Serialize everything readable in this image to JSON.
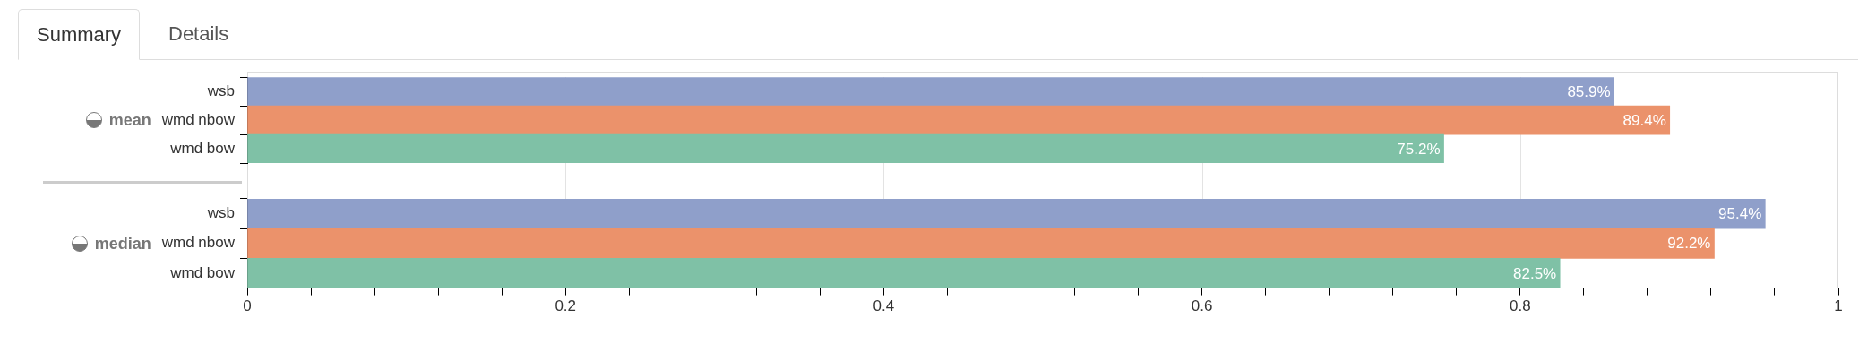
{
  "chart_data": [
    {
      "type": "bar",
      "orientation": "horizontal",
      "ylabel": "mean",
      "annotations": [
        "Summary",
        "Details"
      ],
      "categories": [
        "wsb",
        "wmd nbow",
        "wmd bow"
      ],
      "values": [
        0.859,
        0.894,
        0.752
      ],
      "colors": [
        "#8f9fca",
        "#eb926b",
        "#7fc1a6"
      ],
      "value_labels": [
        "85.9%",
        "89.4%",
        "75.2%"
      ],
      "xlim": [
        0,
        1
      ],
      "xticks": [
        0,
        0.2,
        0.4,
        0.6,
        0.8,
        1
      ],
      "grid": "x",
      "tick_labels": "y"
    },
    {
      "type": "bar",
      "orientation": "horizontal",
      "ylabel": "median",
      "categories": [
        "wsb",
        "wmd nbow",
        "wmd bow"
      ],
      "values": [
        0.954,
        0.922,
        0.825
      ],
      "colors": [
        "#8f9fca",
        "#eb926b",
        "#7fc1a6"
      ],
      "value_labels": [
        "95.4%",
        "92.2%",
        "82.5%"
      ],
      "xlim": [
        0,
        1
      ],
      "xticks": [
        0,
        {
          "value": 0.04,
          "label": null
        },
        {
          "value": 0.08,
          "label": null
        },
        {
          "value": 0.12,
          "label": null
        },
        {
          "value": 0.16,
          "label": null
        },
        0.2,
        {
          "value": 0.24,
          "label": null
        },
        {
          "value": 0.28,
          "label": null
        },
        {
          "value": 0.32,
          "label": null
        },
        {
          "value": 0.36,
          "label": null
        },
        0.4,
        {
          "value": 0.44,
          "label": null
        },
        {
          "value": 0.48,
          "label": null
        },
        {
          "value": 0.52,
          "label": null
        },
        {
          "value": 0.56,
          "label": null
        },
        0.6,
        {
          "value": 0.64,
          "label": null
        },
        {
          "value": 0.68,
          "label": null
        },
        {
          "value": 0.72,
          "label": null
        },
        {
          "value": 0.76,
          "label": null
        },
        0.8,
        {
          "value": 0.84,
          "label": null
        },
        {
          "value": 0.88,
          "label": null
        },
        {
          "value": 0.92,
          "label": null
        },
        {
          "value": 0.96,
          "label": null
        },
        1
      ],
      "grid": "x"
    }
  ]
}
